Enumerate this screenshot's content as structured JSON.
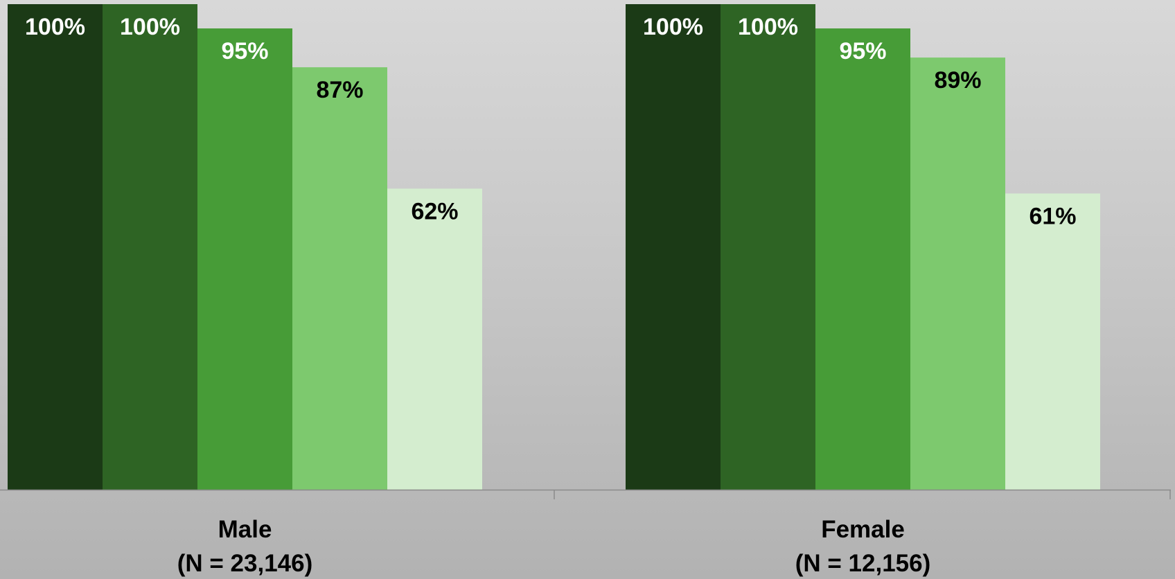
{
  "chart_data": {
    "type": "bar",
    "title": "",
    "xlabel": "",
    "ylabel": "",
    "ylim": [
      0,
      100
    ],
    "grid": false,
    "legend": "none",
    "categories": [
      {
        "name": "Male",
        "count_label": "(N = 23,146)"
      },
      {
        "name": "Female",
        "count_label": "(N = 12,156)"
      }
    ],
    "value_format": "{v}%",
    "series": [
      {
        "color": "#1b3a16",
        "label_color": "#ffffff",
        "values": [
          100,
          100
        ]
      },
      {
        "color": "#2e6424",
        "label_color": "#ffffff",
        "values": [
          100,
          100
        ]
      },
      {
        "color": "#479c37",
        "label_color": "#ffffff",
        "values": [
          95,
          95
        ]
      },
      {
        "color": "#7dc96e",
        "label_color": "#000000",
        "values": [
          87,
          89
        ]
      },
      {
        "color": "#d4edcf",
        "label_color": "#000000",
        "values": [
          62,
          61
        ]
      }
    ]
  },
  "colors": {
    "axis_line": "#8a8a8a"
  }
}
